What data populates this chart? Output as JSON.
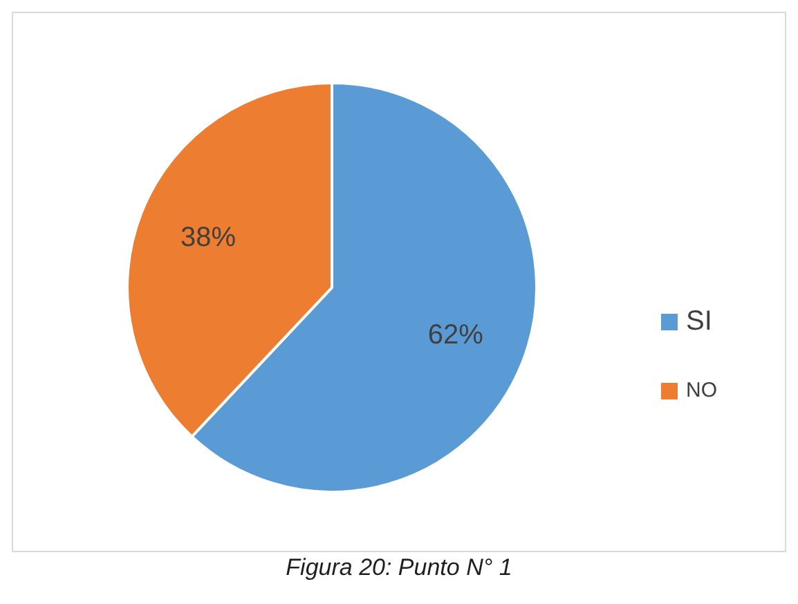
{
  "chart_data": {
    "type": "pie",
    "categories": [
      "SI",
      "NO"
    ],
    "values": [
      62,
      38
    ],
    "colors": [
      "#5b9bd5",
      "#ed7d31"
    ],
    "value_labels": [
      "62%",
      "38%"
    ],
    "legend": "right",
    "annotations": [
      "Figura 20: Punto N° 1"
    ]
  }
}
